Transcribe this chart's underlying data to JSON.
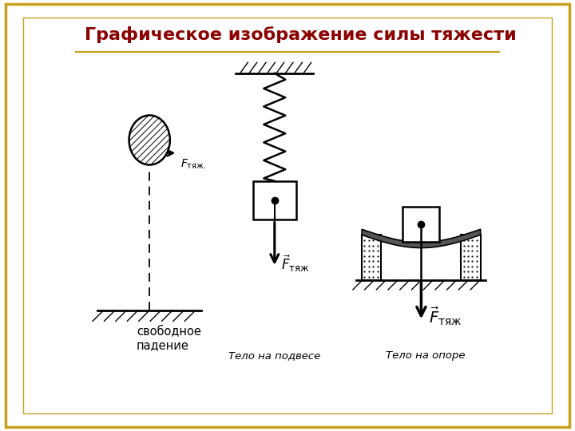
{
  "title": "Графическое изображение силы тяжести",
  "title_color": "#8b0000",
  "title_fontsize": 16,
  "bg_color": "#ffffff",
  "border_color_outer": "#c8a020",
  "border_color_inner": "#c8a020",
  "text_color": "#000000",
  "label1": "свободное\nпадение",
  "label2": "Тело на подвесе",
  "label3": "Тело на опоре",
  "p1x": 1.8,
  "p2x": 4.7,
  "p3x": 8.1
}
